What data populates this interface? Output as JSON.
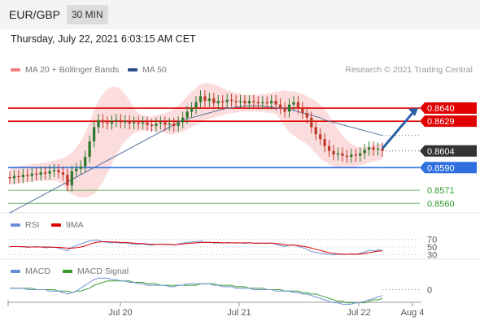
{
  "header": {
    "pair": "EUR/GBP",
    "timeframe": "30 MIN",
    "datetime": "Thursday, July 22, 2021 6:03:15 AM CET",
    "credit": "Research © 2021 Trading Central"
  },
  "legend": {
    "ma20": "MA 20 + Bollinger Bands",
    "ma50": "MA 50",
    "rsi": "RSI",
    "rsi_ma": "9MA",
    "macd": "MACD",
    "macd_signal": "MACD Signal"
  },
  "colors": {
    "resistance": "#e00000",
    "support": "#2f6fe0",
    "target": "#2f9a2f",
    "bollinger": "#f8b4b4",
    "ma50": "#5570a0",
    "up_candle": "#2f7a2f",
    "down_candle": "#c0392b",
    "arrow": "#2b5fa8",
    "rsi": "#6a8fd8",
    "rsi_ma": "#e00000",
    "macd": "#6a8fd8",
    "macd_signal": "#3a9a2a"
  },
  "chart_data": {
    "type": "candlestick",
    "ylim": [
      0.8552,
      0.8668
    ],
    "x_ticks": [
      "Jul 20",
      "Jul 21",
      "Jul 22",
      "Aug 4"
    ],
    "current_price": {
      "value": 0.8604,
      "label": "0.8604"
    },
    "levels": [
      {
        "value": 0.864,
        "label": "0.8640",
        "role": "resistance"
      },
      {
        "value": 0.8629,
        "label": "0.8629",
        "role": "resistance"
      },
      {
        "value": 0.859,
        "label": "0.8590",
        "role": "support"
      },
      {
        "value": 0.8571,
        "label": "0.8571",
        "role": "target"
      },
      {
        "value": 0.856,
        "label": "0.8560",
        "role": "target"
      }
    ],
    "close": [
      0.8581,
      0.8583,
      0.8582,
      0.8584,
      0.8583,
      0.8585,
      0.8584,
      0.8586,
      0.8585,
      0.8587,
      0.8588,
      0.8586,
      0.8584,
      0.8575,
      0.8587,
      0.8589,
      0.8591,
      0.8599,
      0.8612,
      0.8624,
      0.863,
      0.8628,
      0.8627,
      0.8629,
      0.863,
      0.8628,
      0.8629,
      0.8627,
      0.8628,
      0.8627,
      0.8628,
      0.8626,
      0.8625,
      0.8627,
      0.8628,
      0.8626,
      0.8627,
      0.8625,
      0.8628,
      0.8632,
      0.8637,
      0.864,
      0.8645,
      0.865,
      0.8646,
      0.8648,
      0.8644,
      0.8646,
      0.8645,
      0.8647,
      0.8646,
      0.8645,
      0.8646,
      0.8644,
      0.8646,
      0.8645,
      0.8644,
      0.8645,
      0.8644,
      0.8646,
      0.8643,
      0.864,
      0.8637,
      0.8643,
      0.8645,
      0.864,
      0.8636,
      0.8632,
      0.8624,
      0.8618,
      0.8614,
      0.8608,
      0.8604,
      0.8601,
      0.8602,
      0.86,
      0.8599,
      0.8601,
      0.86,
      0.8602,
      0.8605,
      0.8607,
      0.8605,
      0.8606,
      0.8604
    ],
    "ma50": [
      0.8552,
      0.8554,
      0.8556,
      0.8558,
      0.856,
      0.8562,
      0.8564,
      0.8566,
      0.8568,
      0.857,
      0.8572,
      0.8574,
      0.8576,
      0.8578,
      0.858,
      0.8582,
      0.8584,
      0.8586,
      0.8588,
      0.859,
      0.8592,
      0.8594,
      0.8596,
      0.8598,
      0.86,
      0.8602,
      0.8604,
      0.8606,
      0.8608,
      0.861,
      0.8612,
      0.8614,
      0.8616,
      0.8618,
      0.862,
      0.8622,
      0.8624,
      0.8626,
      0.8628,
      0.863,
      0.8631,
      0.8632,
      0.8633,
      0.8634,
      0.8635,
      0.8636,
      0.8637,
      0.8638,
      0.8639,
      0.864,
      0.864,
      0.8641,
      0.8641,
      0.8642,
      0.8642,
      0.8642,
      0.8642,
      0.8642,
      0.8641,
      0.8641,
      0.864,
      0.864,
      0.864,
      0.8639,
      0.8638,
      0.8637,
      0.8636,
      0.8635,
      0.8634,
      0.8633,
      0.8632,
      0.863,
      0.8629,
      0.8628,
      0.8627,
      0.8626,
      0.8625,
      0.8624,
      0.8623,
      0.8622,
      0.8621,
      0.862,
      0.8619,
      0.8618,
      0.8617
    ],
    "bb_upper": [
      0.859,
      0.8591,
      0.8591,
      0.8592,
      0.8592,
      0.8593,
      0.8593,
      0.8594,
      0.8594,
      0.8595,
      0.8596,
      0.8597,
      0.8598,
      0.86,
      0.8603,
      0.8607,
      0.8612,
      0.8619,
      0.8628,
      0.8638,
      0.8646,
      0.8652,
      0.8656,
      0.8658,
      0.8658,
      0.8656,
      0.8652,
      0.8646,
      0.864,
      0.8636,
      0.8634,
      0.8633,
      0.8633,
      0.8634,
      0.8635,
      0.8636,
      0.8637,
      0.8639,
      0.8642,
      0.8646,
      0.865,
      0.8654,
      0.8657,
      0.866,
      0.8661,
      0.8661,
      0.866,
      0.8659,
      0.8657,
      0.8655,
      0.8654,
      0.8653,
      0.8652,
      0.8651,
      0.8651,
      0.8651,
      0.8651,
      0.8652,
      0.8652,
      0.8653,
      0.8654,
      0.8654,
      0.8655,
      0.8654,
      0.8654,
      0.8653,
      0.8652,
      0.865,
      0.8648,
      0.8646,
      0.8643,
      0.8639,
      0.8634,
      0.8628,
      0.8622,
      0.8617,
      0.8613,
      0.861,
      0.8608,
      0.8607,
      0.8607,
      0.8608,
      0.8609,
      0.861,
      0.861
    ],
    "bb_lower": [
      0.8576,
      0.8576,
      0.8577,
      0.8577,
      0.8578,
      0.8578,
      0.8579,
      0.8579,
      0.8579,
      0.8579,
      0.8579,
      0.8578,
      0.8576,
      0.857,
      0.8568,
      0.8566,
      0.8565,
      0.8565,
      0.8566,
      0.8568,
      0.8572,
      0.8578,
      0.8585,
      0.8593,
      0.8601,
      0.8607,
      0.8612,
      0.8616,
      0.8619,
      0.862,
      0.8621,
      0.8621,
      0.8621,
      0.862,
      0.862,
      0.8619,
      0.8618,
      0.8618,
      0.8619,
      0.862,
      0.8622,
      0.8624,
      0.8626,
      0.8628,
      0.863,
      0.8631,
      0.8632,
      0.8633,
      0.8634,
      0.8635,
      0.8636,
      0.8636,
      0.8637,
      0.8637,
      0.8637,
      0.8637,
      0.8637,
      0.8637,
      0.8636,
      0.8636,
      0.8635,
      0.863,
      0.8625,
      0.862,
      0.8617,
      0.8614,
      0.8612,
      0.861,
      0.8606,
      0.8602,
      0.8598,
      0.8595,
      0.8593,
      0.8591,
      0.859,
      0.859,
      0.859,
      0.859,
      0.8591,
      0.8592,
      0.8593,
      0.8594,
      0.8595,
      0.8596,
      0.8597
    ],
    "forecast": {
      "from": 0.8606,
      "to": 0.864
    },
    "rsi": {
      "levels": [
        70,
        50,
        30
      ],
      "ylim": [
        20,
        80
      ],
      "values": [
        50,
        52,
        51,
        50,
        49,
        50,
        51,
        50,
        48,
        49,
        50,
        47,
        44,
        40,
        49,
        54,
        58,
        62,
        66,
        68,
        67,
        64,
        62,
        61,
        62,
        60,
        61,
        59,
        58,
        57,
        58,
        56,
        55,
        57,
        58,
        56,
        57,
        55,
        58,
        60,
        62,
        63,
        64,
        66,
        62,
        63,
        60,
        61,
        60,
        62,
        61,
        60,
        61,
        59,
        61,
        60,
        59,
        60,
        59,
        61,
        57,
        54,
        51,
        55,
        56,
        52,
        48,
        44,
        38,
        36,
        34,
        32,
        30,
        29,
        31,
        30,
        30,
        32,
        31,
        33,
        37,
        41,
        40,
        42,
        41
      ],
      "ma_values": [
        51,
        51,
        51,
        51,
        50,
        50,
        50,
        50,
        50,
        50,
        49,
        49,
        48,
        47,
        47,
        48,
        50,
        53,
        57,
        61,
        63,
        64,
        64,
        63,
        63,
        62,
        62,
        61,
        60,
        59,
        59,
        58,
        57,
        57,
        57,
        57,
        57,
        56,
        57,
        58,
        59,
        60,
        61,
        62,
        62,
        62,
        62,
        62,
        61,
        61,
        61,
        61,
        61,
        61,
        61,
        60,
        60,
        60,
        60,
        60,
        59,
        58,
        56,
        55,
        55,
        54,
        52,
        50,
        47,
        44,
        41,
        38,
        35,
        33,
        32,
        31,
        31,
        31,
        31,
        31,
        33,
        35,
        37,
        39,
        40
      ]
    },
    "macd": {
      "zero_label": "0",
      "ylim": [
        -0.0012,
        0.0012
      ],
      "values": [
        0.0001,
        0.0001,
        0.0001,
        0.0001,
        0.0,
        0.0,
        0.0,
        0.0,
        0.0,
        -0.0001,
        -0.0001,
        -0.0001,
        -0.0002,
        -0.0003,
        -0.0002,
        -0.0001,
        0.0001,
        0.0003,
        0.0005,
        0.0007,
        0.0008,
        0.0008,
        0.0008,
        0.0007,
        0.0007,
        0.0006,
        0.0006,
        0.0005,
        0.0005,
        0.0004,
        0.0004,
        0.0003,
        0.0003,
        0.0003,
        0.0003,
        0.0003,
        0.0002,
        0.0002,
        0.0003,
        0.0003,
        0.0004,
        0.0004,
        0.0004,
        0.0004,
        0.0004,
        0.0004,
        0.0003,
        0.0003,
        0.0002,
        0.0002,
        0.0002,
        0.0001,
        0.0001,
        0.0001,
        0.0001,
        0.0,
        0.0,
        0.0,
        0.0,
        0.0,
        -0.0001,
        -0.0001,
        -0.0001,
        -0.0001,
        -0.0002,
        -0.0002,
        -0.0003,
        -0.0003,
        -0.0004,
        -0.0005,
        -0.0006,
        -0.0007,
        -0.0008,
        -0.0009,
        -0.0009,
        -0.001,
        -0.001,
        -0.001,
        -0.0009,
        -0.0009,
        -0.0008,
        -0.0007,
        -0.0006,
        -0.0005,
        -0.0004
      ],
      "signal": [
        0.0001,
        0.0001,
        0.0001,
        0.0001,
        0.0001,
        0.0001,
        0.0,
        0.0,
        0.0,
        0.0,
        0.0,
        -0.0001,
        -0.0001,
        -0.0001,
        -0.0002,
        -0.0001,
        -0.0001,
        0.0,
        0.0001,
        0.0003,
        0.0004,
        0.0005,
        0.0006,
        0.0006,
        0.0006,
        0.0006,
        0.0006,
        0.0006,
        0.0005,
        0.0005,
        0.0005,
        0.0004,
        0.0004,
        0.0004,
        0.0003,
        0.0003,
        0.0003,
        0.0003,
        0.0003,
        0.0003,
        0.0003,
        0.0003,
        0.0003,
        0.0004,
        0.0004,
        0.0004,
        0.0004,
        0.0003,
        0.0003,
        0.0003,
        0.0003,
        0.0002,
        0.0002,
        0.0002,
        0.0001,
        0.0001,
        0.0001,
        0.0001,
        0.0,
        0.0,
        0.0,
        0.0,
        -0.0001,
        -0.0001,
        -0.0001,
        -0.0001,
        -0.0002,
        -0.0002,
        -0.0003,
        -0.0003,
        -0.0004,
        -0.0005,
        -0.0006,
        -0.0007,
        -0.0008,
        -0.0008,
        -0.0009,
        -0.0009,
        -0.0009,
        -0.0009,
        -0.0009,
        -0.0008,
        -0.0007,
        -0.0007,
        -0.0006
      ]
    }
  }
}
